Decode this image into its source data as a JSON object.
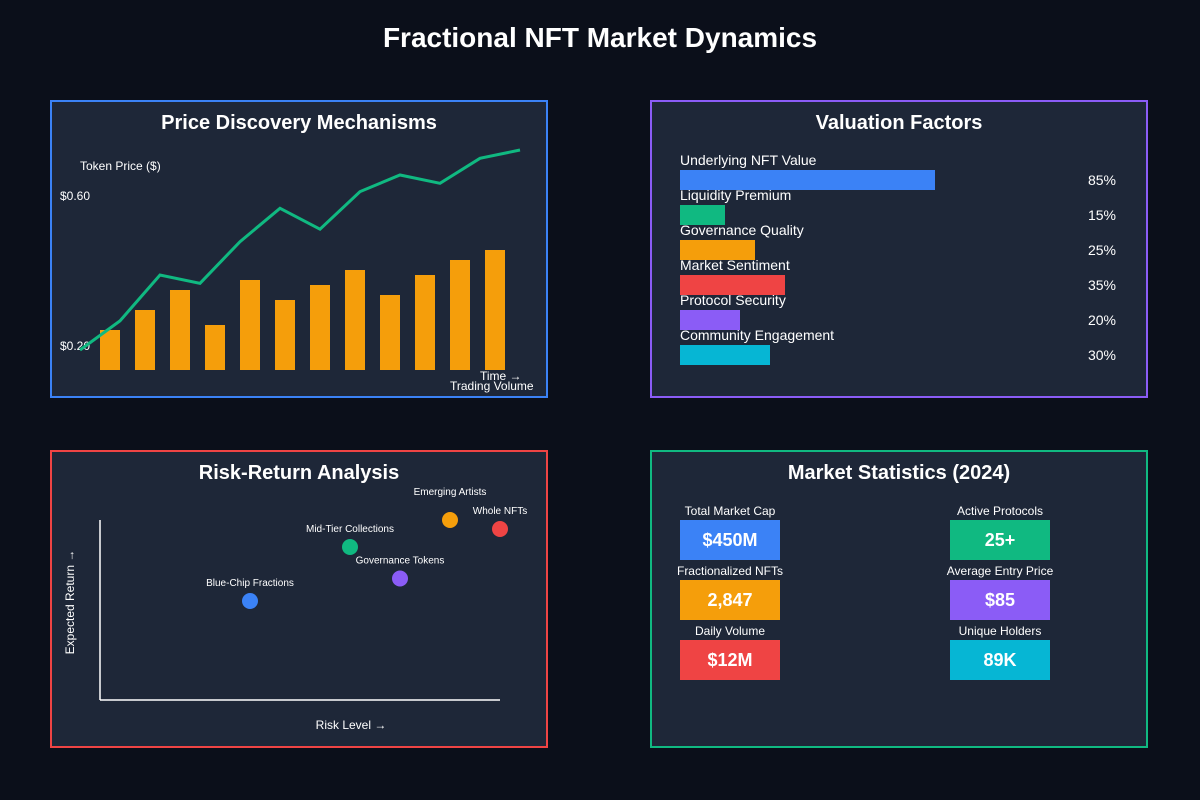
{
  "page": {
    "title": "Fractional NFT Market Dynamics"
  },
  "price_panel": {
    "title": "Price Discovery Mechanisms",
    "y_axis_label": "Token Price ($)",
    "tick_high": "$0.60",
    "tick_low": "$0.20",
    "time_label": "Time →",
    "volume_label": "Trading Volume"
  },
  "valuation_panel": {
    "title": "Valuation Factors",
    "items": [
      {
        "label": "Underlying NFT Value",
        "value": 85,
        "pct": "85%",
        "color": "#3b82f6"
      },
      {
        "label": "Liquidity Premium",
        "value": 15,
        "pct": "15%",
        "color": "#10b981"
      },
      {
        "label": "Governance Quality",
        "value": 25,
        "pct": "25%",
        "color": "#f59e0b"
      },
      {
        "label": "Market Sentiment",
        "value": 35,
        "pct": "35%",
        "color": "#ef4444"
      },
      {
        "label": "Protocol Security",
        "value": 20,
        "pct": "20%",
        "color": "#8b5cf6"
      },
      {
        "label": "Community Engagement",
        "value": 30,
        "pct": "30%",
        "color": "#06b6d4"
      }
    ]
  },
  "risk_panel": {
    "title": "Risk-Return Analysis",
    "x_label": "Risk Level →",
    "y_label": "Expected Return →"
  },
  "stats_panel": {
    "title": "Market Statistics (2024)",
    "items": [
      {
        "label": "Total Market Cap",
        "value": "$450M",
        "color": "#3b82f6"
      },
      {
        "label": "Active Protocols",
        "value": "25+",
        "color": "#10b981"
      },
      {
        "label": "Fractionalized NFTs",
        "value": "2,847",
        "color": "#f59e0b"
      },
      {
        "label": "Average Entry Price",
        "value": "$85",
        "color": "#8b5cf6"
      },
      {
        "label": "Daily Volume",
        "value": "$12M",
        "color": "#ef4444"
      },
      {
        "label": "Unique Holders",
        "value": "89K",
        "color": "#06b6d4"
      }
    ]
  },
  "chart_data": [
    {
      "type": "bar+line",
      "title": "Price Discovery Mechanisms",
      "ylabel": "Token Price ($)",
      "xlabel": "Time →",
      "y_ticks": [
        "$0.60",
        "$0.20"
      ],
      "line_series": {
        "name": "Token Price",
        "color": "#10b981",
        "values": [
          0.18,
          0.25,
          0.36,
          0.34,
          0.44,
          0.52,
          0.47,
          0.56,
          0.6,
          0.58,
          0.64,
          0.66
        ]
      },
      "bar_series": {
        "name": "Trading Volume",
        "color": "#f59e0b",
        "values": [
          40,
          60,
          80,
          45,
          90,
          70,
          85,
          100,
          75,
          95,
          110,
          120
        ]
      }
    },
    {
      "type": "bar",
      "title": "Valuation Factors",
      "categories": [
        "Underlying NFT Value",
        "Liquidity Premium",
        "Governance Quality",
        "Market Sentiment",
        "Protocol Security",
        "Community Engagement"
      ],
      "values": [
        85,
        15,
        25,
        35,
        20,
        30
      ]
    },
    {
      "type": "scatter",
      "title": "Risk-Return Analysis",
      "xlabel": "Risk Level →",
      "ylabel": "Expected Return →",
      "xlim": [
        0,
        10
      ],
      "ylim": [
        0,
        10
      ],
      "points": [
        {
          "label": "Blue-Chip Fractions",
          "x": 3.75,
          "y": 5.5,
          "color": "#3b82f6"
        },
        {
          "label": "Mid-Tier Collections",
          "x": 6.25,
          "y": 8.5,
          "color": "#10b981"
        },
        {
          "label": "Governance Tokens",
          "x": 7.5,
          "y": 6.75,
          "color": "#8b5cf6"
        },
        {
          "label": "Emerging Artists",
          "x": 8.75,
          "y": 10.0,
          "color": "#f59e0b"
        },
        {
          "label": "Whole NFTs",
          "x": 10.0,
          "y": 9.5,
          "color": "#ef4444"
        }
      ]
    }
  ]
}
